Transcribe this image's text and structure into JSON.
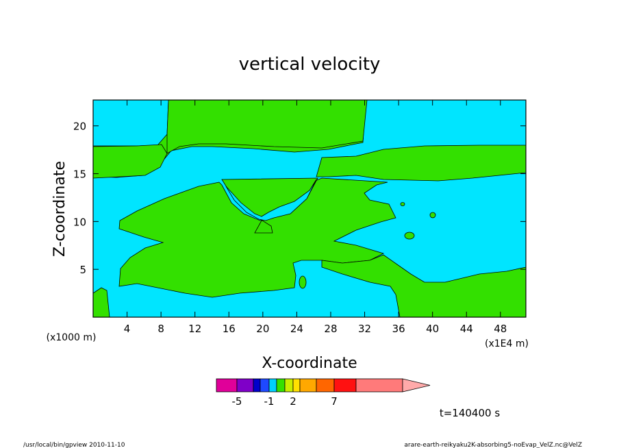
{
  "chart_data": {
    "type": "heatmap",
    "title": "vertical velocity",
    "xlabel": "X-coordinate",
    "ylabel": "Z-coordinate",
    "x_unit_note": "(x1E4 m)",
    "y_unit_note": "(x1000 m)",
    "xlim": [
      0,
      51
    ],
    "ylim": [
      0,
      22.7
    ],
    "x_ticks": [
      "4",
      "8",
      "12",
      "16",
      "20",
      "24",
      "28",
      "32",
      "36",
      "40",
      "44",
      "48"
    ],
    "y_ticks": [
      "5",
      "10",
      "15",
      "20"
    ],
    "regions": [
      {
        "color": "#00e5ff",
        "meaning": "background level"
      },
      {
        "color": "#33e000",
        "meaning": "green level"
      }
    ],
    "colorbar": {
      "colors": [
        "#e00099",
        "#7f00c8",
        "#0000cc",
        "#1e49ff",
        "#00d0ff",
        "#33e000",
        "#c8ee00",
        "#ffe000",
        "#ffa800",
        "#ff6600",
        "#ff1111",
        "#ff7a7a",
        "#ffaaaa"
      ],
      "labels": [
        "-5",
        "-1",
        "2",
        "7"
      ]
    },
    "time_label": "t=140400 s"
  },
  "footer": {
    "left": "/usr/local/bin/gpview   2010-11-10",
    "right": "arare-earth-reikyaku2K-absorbing5-noEvap_VelZ.nc@VelZ"
  }
}
